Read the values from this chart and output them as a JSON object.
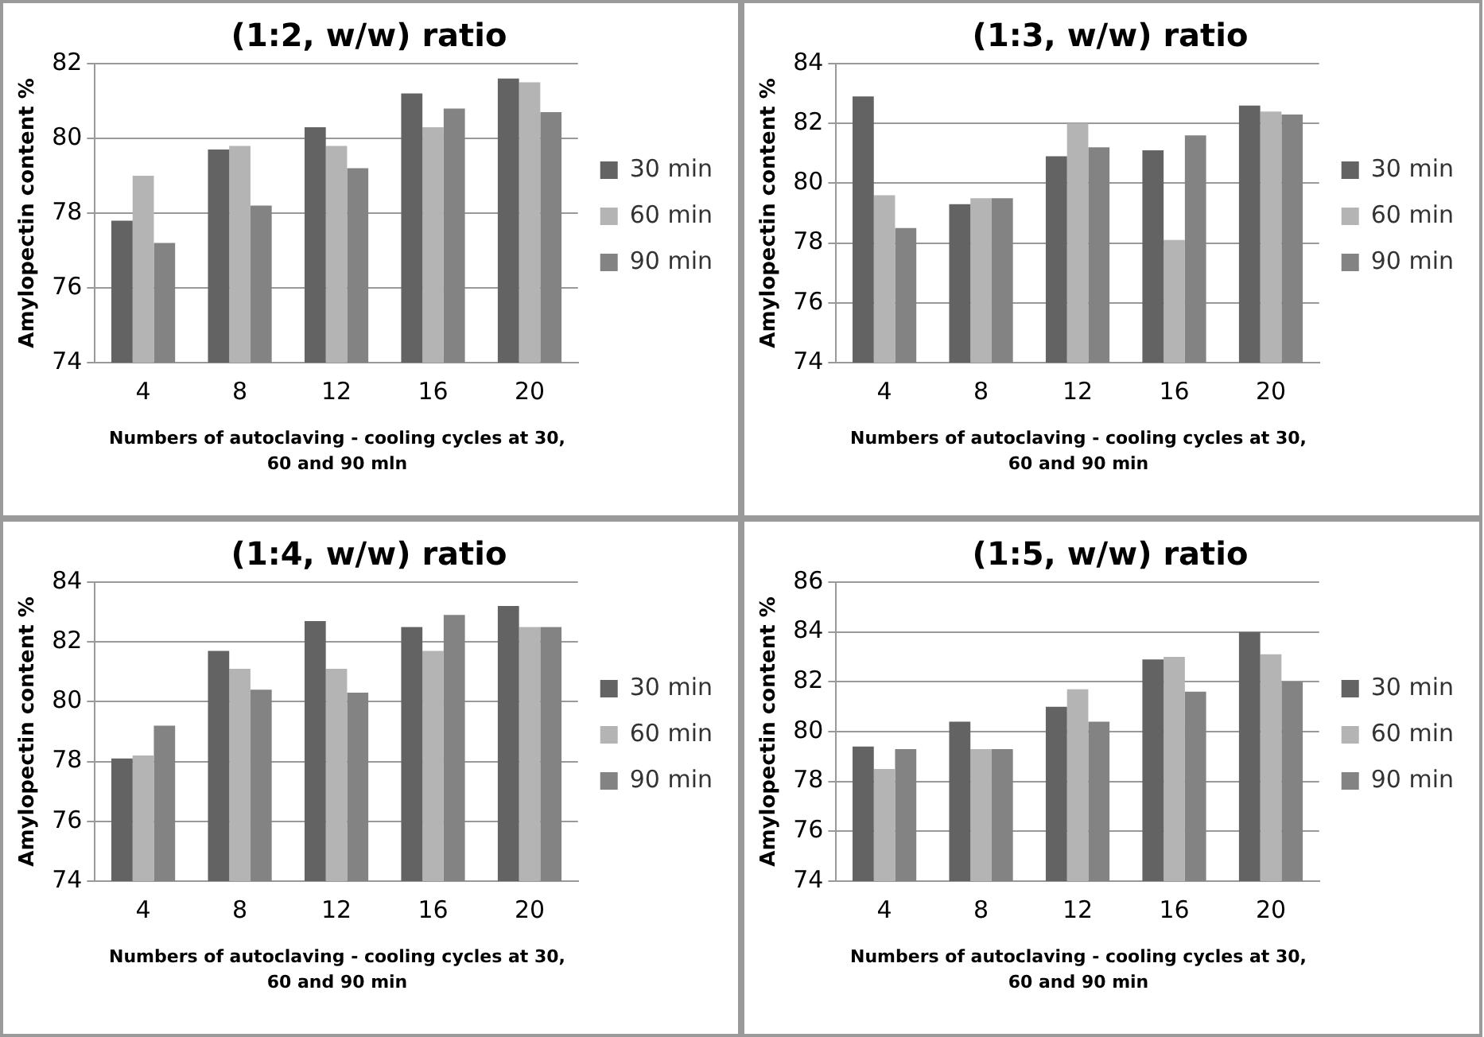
{
  "chart_data": [
    {
      "type": "bar",
      "title": "(1:2, w/w) ratio",
      "xlabel": "Numbers of autoclaving - cooling cycles at 30, 60 and 90 mln",
      "ylabel": "Amylopectin content %",
      "categories": [
        "4",
        "8",
        "12",
        "16",
        "20"
      ],
      "series": [
        {
          "name": "30 min",
          "color": "#636363",
          "values": [
            77.8,
            79.7,
            80.3,
            81.2,
            81.6
          ]
        },
        {
          "name": "60 min",
          "color": "#b4b4b4",
          "values": [
            79.0,
            79.8,
            79.8,
            80.3,
            81.5
          ]
        },
        {
          "name": "90 min",
          "color": "#838383",
          "values": [
            77.2,
            78.2,
            79.2,
            80.8,
            80.7
          ]
        }
      ],
      "ylim": [
        74,
        82
      ],
      "yticks": [
        74,
        76,
        78,
        80,
        82
      ],
      "grid": "y",
      "legend": "right"
    },
    {
      "type": "bar",
      "title": "(1:3, w/w) ratio",
      "xlabel": "Numbers of autoclaving - cooling cycles at 30, 60 and 90 min",
      "ylabel": "Amylopectin content %",
      "categories": [
        "4",
        "8",
        "12",
        "16",
        "20"
      ],
      "series": [
        {
          "name": "30 min",
          "color": "#636363",
          "values": [
            82.9,
            79.3,
            80.9,
            81.1,
            82.6
          ]
        },
        {
          "name": "60 min",
          "color": "#b4b4b4",
          "values": [
            79.6,
            79.5,
            82.0,
            78.1,
            82.4
          ]
        },
        {
          "name": "90 min",
          "color": "#838383",
          "values": [
            78.5,
            79.5,
            81.2,
            81.6,
            82.3
          ]
        }
      ],
      "ylim": [
        74,
        84
      ],
      "yticks": [
        74,
        76,
        78,
        80,
        82,
        84
      ],
      "grid": "y",
      "legend": "right"
    },
    {
      "type": "bar",
      "title": "(1:4, w/w) ratio",
      "xlabel": "Numbers of autoclaving - cooling cycles at 30, 60 and 90 min",
      "ylabel": "Amylopectin content %",
      "categories": [
        "4",
        "8",
        "12",
        "16",
        "20"
      ],
      "series": [
        {
          "name": "30 min",
          "color": "#636363",
          "values": [
            78.1,
            81.7,
            82.7,
            82.5,
            83.2
          ]
        },
        {
          "name": "60 min",
          "color": "#b4b4b4",
          "values": [
            78.2,
            81.1,
            81.1,
            81.7,
            82.5
          ]
        },
        {
          "name": "90 min",
          "color": "#838383",
          "values": [
            79.2,
            80.4,
            80.3,
            82.9,
            82.5
          ]
        }
      ],
      "ylim": [
        74,
        84
      ],
      "yticks": [
        74,
        76,
        78,
        80,
        82,
        84
      ],
      "grid": "y",
      "legend": "right"
    },
    {
      "type": "bar",
      "title": "(1:5, w/w) ratio",
      "xlabel": "Numbers of autoclaving - cooling cycles at 30, 60 and 90 min",
      "ylabel": "Amylopectin content %",
      "categories": [
        "4",
        "8",
        "12",
        "16",
        "20"
      ],
      "series": [
        {
          "name": "30 min",
          "color": "#636363",
          "values": [
            79.4,
            80.4,
            81.0,
            82.9,
            84.0
          ]
        },
        {
          "name": "60 min",
          "color": "#b4b4b4",
          "values": [
            78.5,
            79.3,
            81.7,
            83.0,
            83.1
          ]
        },
        {
          "name": "90 min",
          "color": "#838383",
          "values": [
            79.3,
            79.3,
            80.4,
            81.6,
            82.0
          ]
        }
      ],
      "ylim": [
        74,
        86
      ],
      "yticks": [
        74,
        76,
        78,
        80,
        82,
        84,
        86
      ],
      "grid": "y",
      "legend": "right"
    }
  ]
}
